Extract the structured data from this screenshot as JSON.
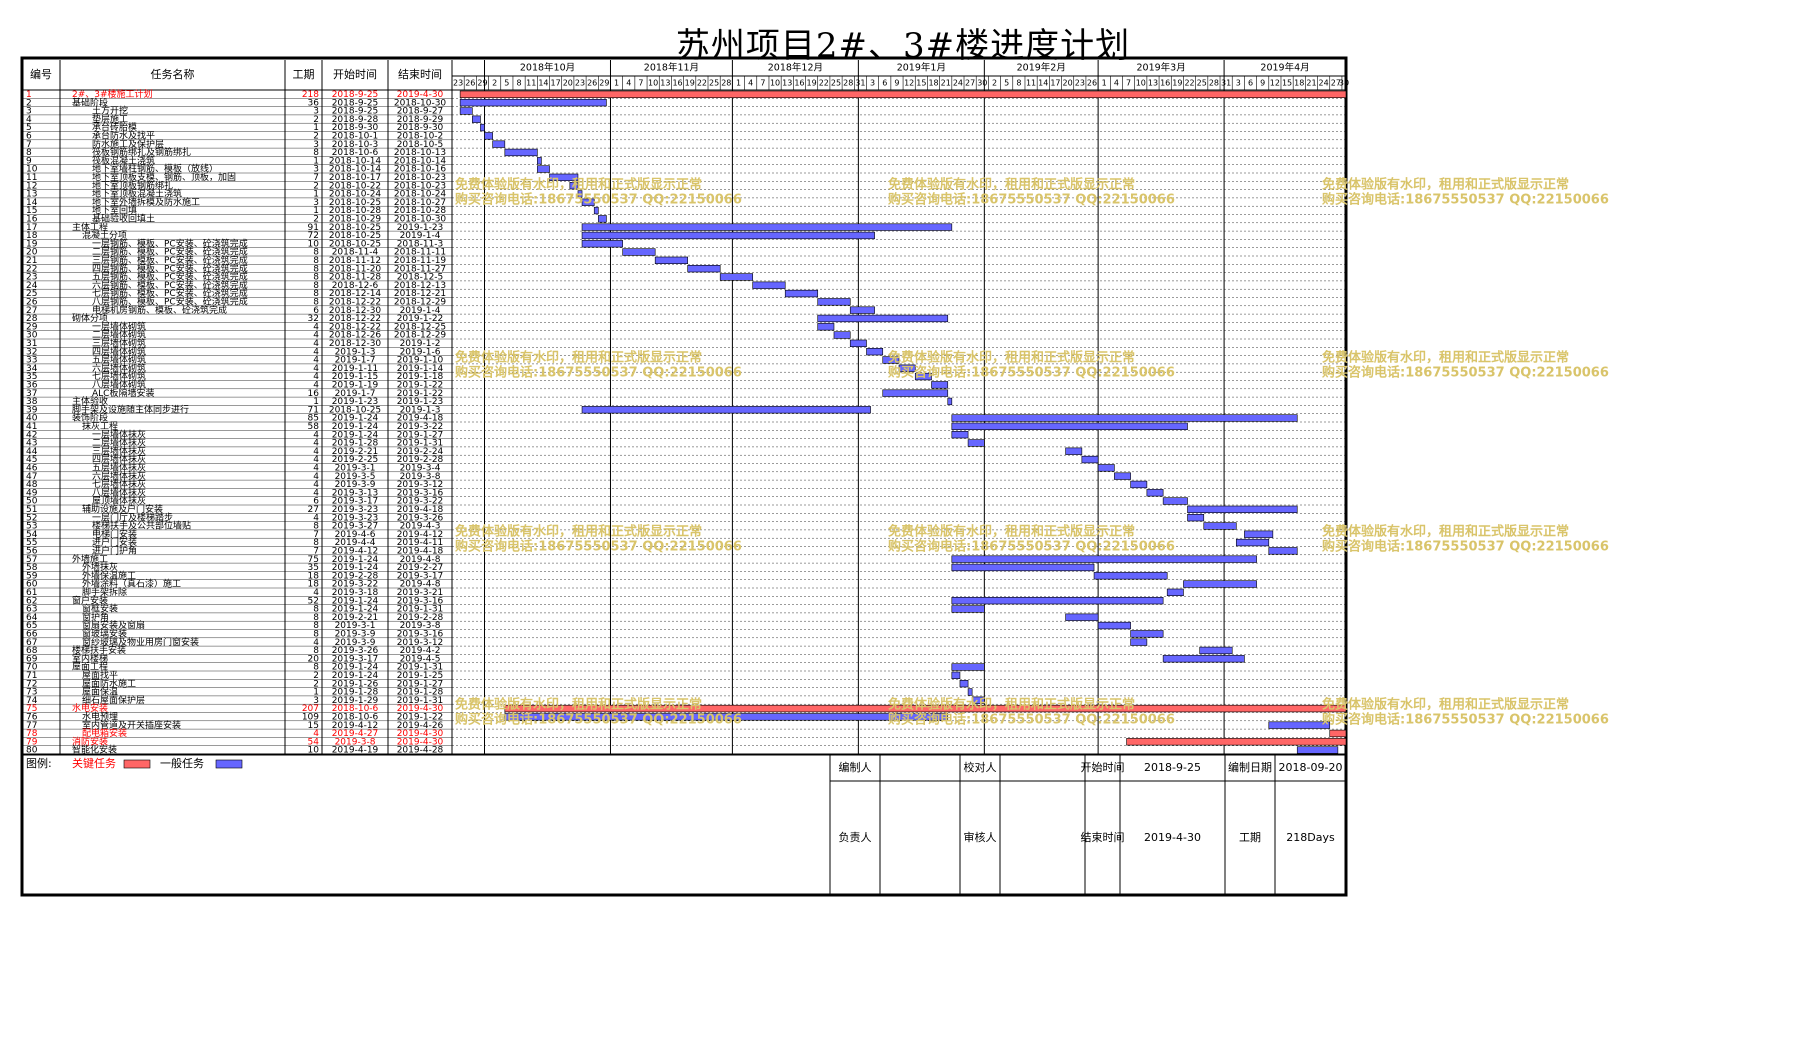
{
  "title": "苏州项目2#、3#楼进度计划",
  "columns": [
    "编号",
    "任务名称",
    "工期",
    "开始时间",
    "结束时间"
  ],
  "colors": {
    "critical": "#ff6666",
    "critical_text": "#ff0000",
    "normal": "#6666ff",
    "grid": "#000000"
  },
  "chart_data": {
    "type": "gantt",
    "time_axis": {
      "start": "2018-9-23",
      "end": "2019-4-30",
      "months": [
        "2018年10月",
        "2018年11月",
        "2018年12月",
        "2019年1月",
        "2019年2月",
        "2019年3月",
        "2019年4月"
      ],
      "days": [
        "23",
        "26",
        "29",
        "2",
        "5",
        "8",
        "11",
        "14",
        "17",
        "20",
        "23",
        "26",
        "29",
        "1",
        "4",
        "7",
        "10",
        "13",
        "16",
        "19",
        "22",
        "25",
        "28",
        "1",
        "4",
        "7",
        "10",
        "13",
        "16",
        "19",
        "22",
        "25",
        "28",
        "31",
        "3",
        "6",
        "9",
        "12",
        "15",
        "18",
        "21",
        "24",
        "27",
        "30",
        "2",
        "5",
        "8",
        "11",
        "14",
        "17",
        "20",
        "23",
        "26",
        "1",
        "4",
        "7",
        "10",
        "13",
        "16",
        "19",
        "22",
        "25",
        "28",
        "31",
        "3",
        "6",
        "9",
        "12",
        "15",
        "18",
        "21",
        "24",
        "27",
        "30"
      ]
    },
    "tasks": [
      {
        "id": "1",
        "name": "2#、3#楼施工计划",
        "dur": "218",
        "start": "2018-9-25",
        "end": "2019-4-30",
        "level": 0,
        "critical": true
      },
      {
        "id": "2",
        "name": "基础阶段",
        "dur": "36",
        "start": "2018-9-25",
        "end": "2018-10-30",
        "level": 0,
        "critical": false
      },
      {
        "id": "3",
        "name": "土方开挖",
        "dur": "3",
        "start": "2018-9-25",
        "end": "2018-9-27",
        "level": 2,
        "critical": false
      },
      {
        "id": "4",
        "name": "垫层施工",
        "dur": "2",
        "start": "2018-9-28",
        "end": "2018-9-29",
        "level": 2,
        "critical": false
      },
      {
        "id": "5",
        "name": "承台砖胎模",
        "dur": "1",
        "start": "2018-9-30",
        "end": "2018-9-30",
        "level": 2,
        "critical": false
      },
      {
        "id": "6",
        "name": "承台防水及找平",
        "dur": "2",
        "start": "2018-10-1",
        "end": "2018-10-2",
        "level": 2,
        "critical": false
      },
      {
        "id": "7",
        "name": "防水施工及保护层",
        "dur": "3",
        "start": "2018-10-3",
        "end": "2018-10-5",
        "level": 2,
        "critical": false
      },
      {
        "id": "8",
        "name": "筏板钢筋绑扎及钢筋绑扎",
        "dur": "8",
        "start": "2018-10-6",
        "end": "2018-10-13",
        "level": 2,
        "critical": false
      },
      {
        "id": "9",
        "name": "筏板混凝土浇筑",
        "dur": "1",
        "start": "2018-10-14",
        "end": "2018-10-14",
        "level": 2,
        "critical": false
      },
      {
        "id": "10",
        "name": "地下室墙柱钢筋、模板（放线）",
        "dur": "3",
        "start": "2018-10-14",
        "end": "2018-10-16",
        "level": 2,
        "critical": false
      },
      {
        "id": "11",
        "name": "地下室顶板支模、钢筋、顶板，加固",
        "dur": "7",
        "start": "2018-10-17",
        "end": "2018-10-23",
        "level": 2,
        "critical": false
      },
      {
        "id": "12",
        "name": "地下室顶板钢筋绑扎",
        "dur": "2",
        "start": "2018-10-22",
        "end": "2018-10-23",
        "level": 2,
        "critical": false
      },
      {
        "id": "13",
        "name": "地下室顶板混凝土浇筑",
        "dur": "1",
        "start": "2018-10-24",
        "end": "2018-10-24",
        "level": 2,
        "critical": false
      },
      {
        "id": "14",
        "name": "地下室外墙拆模及防水施工",
        "dur": "3",
        "start": "2018-10-25",
        "end": "2018-10-27",
        "level": 2,
        "critical": false
      },
      {
        "id": "15",
        "name": "地下室回填",
        "dur": "1",
        "start": "2018-10-28",
        "end": "2018-10-28",
        "level": 2,
        "critical": false
      },
      {
        "id": "16",
        "name": "基础验收回填土",
        "dur": "2",
        "start": "2018-10-29",
        "end": "2018-10-30",
        "level": 2,
        "critical": false
      },
      {
        "id": "17",
        "name": "主体工程",
        "dur": "91",
        "start": "2018-10-25",
        "end": "2019-1-23",
        "level": 0,
        "critical": false
      },
      {
        "id": "18",
        "name": "混凝土分项",
        "dur": "72",
        "start": "2018-10-25",
        "end": "2019-1-4",
        "level": 1,
        "critical": false
      },
      {
        "id": "19",
        "name": "一层钢筋、模板、PC安装、砼浇筑完成",
        "dur": "10",
        "start": "2018-10-25",
        "end": "2018-11-3",
        "level": 2,
        "critical": false
      },
      {
        "id": "20",
        "name": "二层钢筋、模板、PC安装、砼浇筑完成",
        "dur": "8",
        "start": "2018-11-4",
        "end": "2018-11-11",
        "level": 2,
        "critical": false
      },
      {
        "id": "21",
        "name": "三层钢筋、模板、PC安装、砼浇筑完成",
        "dur": "8",
        "start": "2018-11-12",
        "end": "2018-11-19",
        "level": 2,
        "critical": false
      },
      {
        "id": "22",
        "name": "四层钢筋、模板、PC安装、砼浇筑完成",
        "dur": "8",
        "start": "2018-11-20",
        "end": "2018-11-27",
        "level": 2,
        "critical": false
      },
      {
        "id": "23",
        "name": "五层钢筋、模板、PC安装、砼浇筑完成",
        "dur": "8",
        "start": "2018-11-28",
        "end": "2018-12-5",
        "level": 2,
        "critical": false
      },
      {
        "id": "24",
        "name": "六层钢筋、模板、PC安装、砼浇筑完成",
        "dur": "8",
        "start": "2018-12-6",
        "end": "2018-12-13",
        "level": 2,
        "critical": false
      },
      {
        "id": "25",
        "name": "七层钢筋、模板、PC安装、砼浇筑完成",
        "dur": "8",
        "start": "2018-12-14",
        "end": "2018-12-21",
        "level": 2,
        "critical": false
      },
      {
        "id": "26",
        "name": "八层钢筋、模板、PC安装、砼浇筑完成",
        "dur": "8",
        "start": "2018-12-22",
        "end": "2018-12-29",
        "level": 2,
        "critical": false
      },
      {
        "id": "27",
        "name": "电梯机房钢筋、模板、砼浇筑完成",
        "dur": "6",
        "start": "2018-12-30",
        "end": "2019-1-4",
        "level": 2,
        "critical": false
      },
      {
        "id": "28",
        "name": "砌体分项",
        "dur": "32",
        "start": "2018-12-22",
        "end": "2019-1-22",
        "level": 0,
        "critical": false
      },
      {
        "id": "29",
        "name": "一层墙体砌筑",
        "dur": "4",
        "start": "2018-12-22",
        "end": "2018-12-25",
        "level": 2,
        "critical": false
      },
      {
        "id": "30",
        "name": "二层墙体砌筑",
        "dur": "4",
        "start": "2018-12-26",
        "end": "2018-12-29",
        "level": 2,
        "critical": false
      },
      {
        "id": "31",
        "name": "三层墙体砌筑",
        "dur": "4",
        "start": "2018-12-30",
        "end": "2019-1-2",
        "level": 2,
        "critical": false
      },
      {
        "id": "32",
        "name": "四层墙体砌筑",
        "dur": "4",
        "start": "2019-1-3",
        "end": "2019-1-6",
        "level": 2,
        "critical": false
      },
      {
        "id": "33",
        "name": "五层墙体砌筑",
        "dur": "4",
        "start": "2019-1-7",
        "end": "2019-1-10",
        "level": 2,
        "critical": false
      },
      {
        "id": "34",
        "name": "六层墙体砌筑",
        "dur": "4",
        "start": "2019-1-11",
        "end": "2019-1-14",
        "level": 2,
        "critical": false
      },
      {
        "id": "35",
        "name": "七层墙体砌筑",
        "dur": "4",
        "start": "2019-1-15",
        "end": "2019-1-18",
        "level": 2,
        "critical": false
      },
      {
        "id": "36",
        "name": "八层墙体砌筑",
        "dur": "4",
        "start": "2019-1-19",
        "end": "2019-1-22",
        "level": 2,
        "critical": false
      },
      {
        "id": "37",
        "name": "ALC板隔墙安装",
        "dur": "16",
        "start": "2019-1-7",
        "end": "2019-1-22",
        "level": 2,
        "critical": false
      },
      {
        "id": "38",
        "name": "主体验收",
        "dur": "1",
        "start": "2019-1-23",
        "end": "2019-1-23",
        "level": 0,
        "critical": false
      },
      {
        "id": "39",
        "name": "脚手架及设施随主体同步进行",
        "dur": "71",
        "start": "2018-10-25",
        "end": "2019-1-3",
        "level": 0,
        "critical": false
      },
      {
        "id": "40",
        "name": "装饰阶段",
        "dur": "85",
        "start": "2019-1-24",
        "end": "2019-4-18",
        "level": 0,
        "critical": false
      },
      {
        "id": "41",
        "name": "抹灰工程",
        "dur": "58",
        "start": "2019-1-24",
        "end": "2019-3-22",
        "level": 1,
        "critical": false
      },
      {
        "id": "42",
        "name": "一层墙体抹灰",
        "dur": "4",
        "start": "2019-1-24",
        "end": "2019-1-27",
        "level": 2,
        "critical": false
      },
      {
        "id": "43",
        "name": "二层墙体抹灰",
        "dur": "4",
        "start": "2019-1-28",
        "end": "2019-1-31",
        "level": 2,
        "critical": false
      },
      {
        "id": "44",
        "name": "三层墙体抹灰",
        "dur": "4",
        "start": "2019-2-21",
        "end": "2019-2-24",
        "level": 2,
        "critical": false
      },
      {
        "id": "45",
        "name": "四层墙体抹灰",
        "dur": "4",
        "start": "2019-2-25",
        "end": "2019-2-28",
        "level": 2,
        "critical": false
      },
      {
        "id": "46",
        "name": "五层墙体抹灰",
        "dur": "4",
        "start": "2019-3-1",
        "end": "2019-3-4",
        "level": 2,
        "critical": false
      },
      {
        "id": "47",
        "name": "六层墙体抹灰",
        "dur": "4",
        "start": "2019-3-5",
        "end": "2019-3-8",
        "level": 2,
        "critical": false
      },
      {
        "id": "48",
        "name": "七层墙体抹灰",
        "dur": "4",
        "start": "2019-3-9",
        "end": "2019-3-12",
        "level": 2,
        "critical": false
      },
      {
        "id": "49",
        "name": "八层墙体抹灰",
        "dur": "4",
        "start": "2019-3-13",
        "end": "2019-3-16",
        "level": 2,
        "critical": false
      },
      {
        "id": "50",
        "name": "屋顶墙体抹灰",
        "dur": "6",
        "start": "2019-3-17",
        "end": "2019-3-22",
        "level": 2,
        "critical": false
      },
      {
        "id": "51",
        "name": "辅助设施及户门安装",
        "dur": "27",
        "start": "2019-3-23",
        "end": "2019-4-18",
        "level": 1,
        "critical": false
      },
      {
        "id": "52",
        "name": "一层门厅及楼梯踏步",
        "dur": "4",
        "start": "2019-3-23",
        "end": "2019-3-26",
        "level": 2,
        "critical": false
      },
      {
        "id": "53",
        "name": "楼梯扶手及公共部位墙贴",
        "dur": "8",
        "start": "2019-3-27",
        "end": "2019-4-3",
        "level": 2,
        "critical": false
      },
      {
        "id": "54",
        "name": "电梯门安装",
        "dur": "7",
        "start": "2019-4-6",
        "end": "2019-4-12",
        "level": 2,
        "critical": false
      },
      {
        "id": "55",
        "name": "进户门安装",
        "dur": "8",
        "start": "2019-4-4",
        "end": "2019-4-11",
        "level": 2,
        "critical": false
      },
      {
        "id": "56",
        "name": "进户门护角",
        "dur": "7",
        "start": "2019-4-12",
        "end": "2019-4-18",
        "level": 2,
        "critical": false
      },
      {
        "id": "57",
        "name": "外墙施工",
        "dur": "75",
        "start": "2019-1-24",
        "end": "2019-4-8",
        "level": 0,
        "critical": false
      },
      {
        "id": "58",
        "name": "外墙抹灰",
        "dur": "35",
        "start": "2019-1-24",
        "end": "2019-2-27",
        "level": 1,
        "critical": false
      },
      {
        "id": "59",
        "name": "外墙保温施工",
        "dur": "18",
        "start": "2019-2-28",
        "end": "2019-3-17",
        "level": 1,
        "critical": false
      },
      {
        "id": "60",
        "name": "外墙涂料（真石漆）施工",
        "dur": "18",
        "start": "2019-3-22",
        "end": "2019-4-8",
        "level": 1,
        "critical": false
      },
      {
        "id": "61",
        "name": "脚手架拆除",
        "dur": "4",
        "start": "2019-3-18",
        "end": "2019-3-21",
        "level": 1,
        "critical": false
      },
      {
        "id": "62",
        "name": "窗户安装",
        "dur": "52",
        "start": "2019-1-24",
        "end": "2019-3-16",
        "level": 0,
        "critical": false
      },
      {
        "id": "63",
        "name": "窗框安装",
        "dur": "8",
        "start": "2019-1-24",
        "end": "2019-1-31",
        "level": 1,
        "critical": false
      },
      {
        "id": "64",
        "name": "窗护角",
        "dur": "8",
        "start": "2019-2-21",
        "end": "2019-2-28",
        "level": 1,
        "critical": false
      },
      {
        "id": "65",
        "name": "窗扇安装及窗扇",
        "dur": "8",
        "start": "2019-3-1",
        "end": "2019-3-8",
        "level": 1,
        "critical": false
      },
      {
        "id": "66",
        "name": "窗玻璃安装",
        "dur": "8",
        "start": "2019-3-9",
        "end": "2019-3-16",
        "level": 1,
        "critical": false
      },
      {
        "id": "67",
        "name": "窗纱玻璃及物业用房门窗安装",
        "dur": "4",
        "start": "2019-3-9",
        "end": "2019-3-12",
        "level": 1,
        "critical": false
      },
      {
        "id": "68",
        "name": "楼梯扶手安装",
        "dur": "8",
        "start": "2019-3-26",
        "end": "2019-4-2",
        "level": 0,
        "critical": false
      },
      {
        "id": "69",
        "name": "室内楼梯",
        "dur": "20",
        "start": "2019-3-17",
        "end": "2019-4-5",
        "level": 0,
        "critical": false
      },
      {
        "id": "70",
        "name": "屋面工程",
        "dur": "8",
        "start": "2019-1-24",
        "end": "2019-1-31",
        "level": 0,
        "critical": false
      },
      {
        "id": "71",
        "name": "屋面找平",
        "dur": "2",
        "start": "2019-1-24",
        "end": "2019-1-25",
        "level": 1,
        "critical": false
      },
      {
        "id": "72",
        "name": "屋面防水施工",
        "dur": "2",
        "start": "2019-1-26",
        "end": "2019-1-27",
        "level": 1,
        "critical": false
      },
      {
        "id": "73",
        "name": "屋面保温",
        "dur": "1",
        "start": "2019-1-28",
        "end": "2019-1-28",
        "level": 1,
        "critical": false
      },
      {
        "id": "74",
        "name": "细石屋面保护层",
        "dur": "3",
        "start": "2019-1-29",
        "end": "2019-1-31",
        "level": 1,
        "critical": false
      },
      {
        "id": "75",
        "name": "水电安装",
        "dur": "207",
        "start": "2018-10-6",
        "end": "2019-4-30",
        "level": 0,
        "critical": true
      },
      {
        "id": "76",
        "name": "水电预埋",
        "dur": "109",
        "start": "2018-10-6",
        "end": "2019-1-22",
        "level": 1,
        "critical": false
      },
      {
        "id": "77",
        "name": "室内管道及开关插座安装",
        "dur": "15",
        "start": "2019-4-12",
        "end": "2019-4-26",
        "level": 1,
        "critical": false
      },
      {
        "id": "78",
        "name": "配电箱安装",
        "dur": "4",
        "start": "2019-4-27",
        "end": "2019-4-30",
        "level": 1,
        "critical": true
      },
      {
        "id": "79",
        "name": "消防安装",
        "dur": "54",
        "start": "2019-3-8",
        "end": "2019-4-30",
        "level": 0,
        "critical": true
      },
      {
        "id": "80",
        "name": "智能化安装",
        "dur": "10",
        "start": "2019-4-19",
        "end": "2019-4-28",
        "level": 0,
        "critical": false
      }
    ]
  },
  "legend": {
    "label": "图例:",
    "critical": "关键任务",
    "normal": "一般任务"
  },
  "watermark": {
    "line1": "免费体验版有水印，租用和正式版显示正常",
    "line2": "购买咨询电话:18675550537 QQ:22150066"
  },
  "footer": {
    "compiler_label": "编制人",
    "compiler": "",
    "reviewer_label": "校对人",
    "reviewer": "",
    "start_label": "开始时间",
    "start": "2018-9-25",
    "date_label": "编制日期",
    "date": "2018-09-20",
    "owner_label": "负责人",
    "owner": "",
    "auditor_label": "审核人",
    "auditor": "",
    "end_label": "结束时间",
    "end": "2019-4-30",
    "duration_label": "工期",
    "duration": "218Days"
  }
}
